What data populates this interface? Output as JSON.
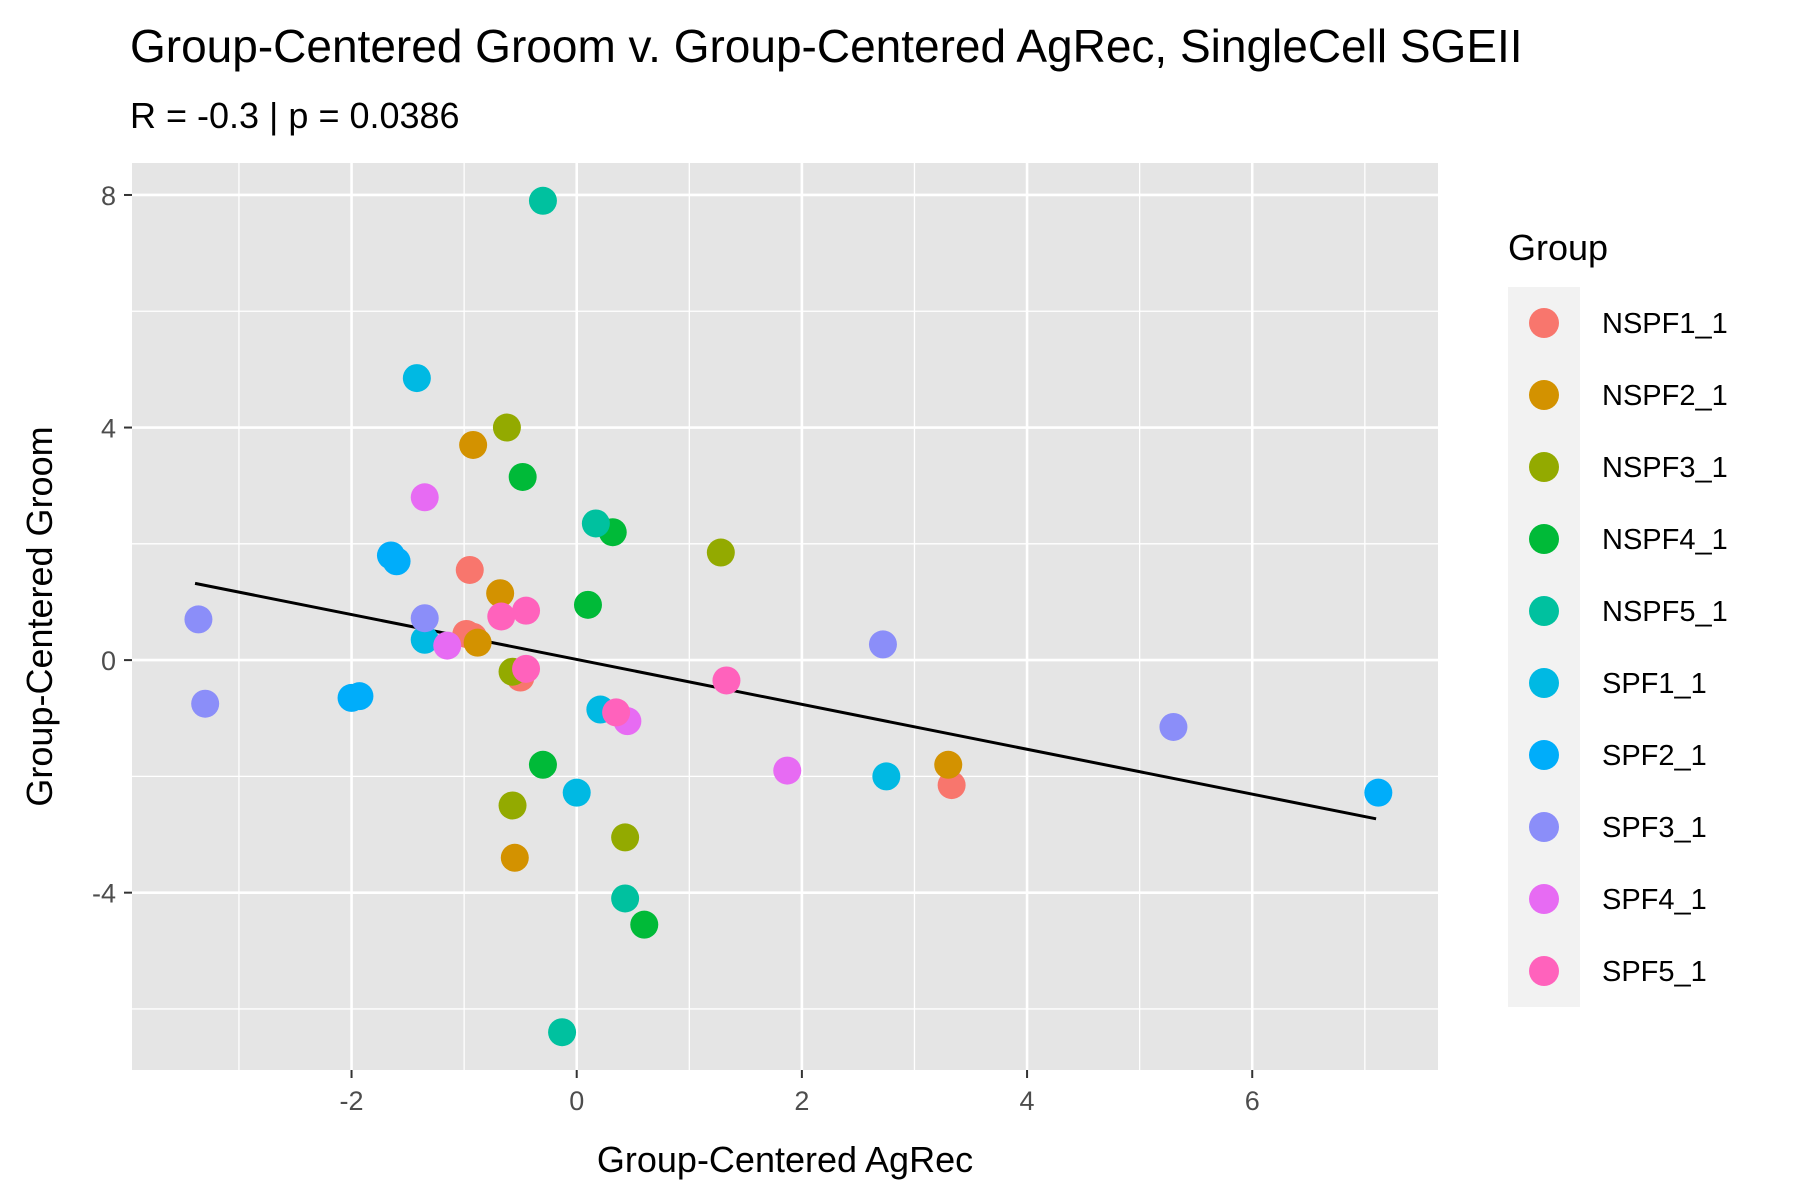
{
  "chart_data": {
    "type": "scatter",
    "title": "Group-Centered Groom v. Group-Centered AgRec, SingleCell SGEII",
    "subtitle": "R = -0.3 | p = 0.0386",
    "xlabel": "Group-Centered AgRec",
    "ylabel": "Group-Centered Groom",
    "xlim": [
      -3.95,
      7.65
    ],
    "ylim": [
      -7.05,
      8.55
    ],
    "x_ticks": [
      -2,
      0,
      2,
      4,
      6
    ],
    "x_tick_labels": [
      "-2",
      "0",
      "2",
      "4",
      "6"
    ],
    "y_ticks": [
      -4,
      0,
      4,
      8
    ],
    "y_tick_labels": [
      "-4",
      "0",
      "4",
      "8"
    ],
    "grid": true,
    "panel_background": "#e5e5e5",
    "legend": {
      "title": "Group",
      "position": "right"
    },
    "trend_line": {
      "x": [
        -3.39,
        7.1
      ],
      "y": [
        1.32,
        -2.73
      ],
      "color": "#000000"
    },
    "series": [
      {
        "name": "NSPF1_1",
        "color": "#F8766D",
        "points": [
          [
            -0.95,
            1.55
          ],
          [
            -0.98,
            0.45
          ],
          [
            -0.5,
            -0.3
          ],
          [
            3.33,
            -2.15
          ],
          [
            -0.92,
            0.4
          ]
        ]
      },
      {
        "name": "NSPF2_1",
        "color": "#D39200",
        "points": [
          [
            -0.92,
            3.7
          ],
          [
            -0.68,
            1.15
          ],
          [
            -0.88,
            0.3
          ],
          [
            -0.55,
            -3.4
          ],
          [
            3.3,
            -1.8
          ]
        ]
      },
      {
        "name": "NSPF3_1",
        "color": "#93AA00",
        "points": [
          [
            -0.62,
            4.0
          ],
          [
            1.28,
            1.85
          ],
          [
            -0.57,
            -0.2
          ],
          [
            -0.57,
            -2.5
          ],
          [
            0.43,
            -3.05
          ]
        ]
      },
      {
        "name": "NSPF4_1",
        "color": "#00BA38",
        "points": [
          [
            -0.48,
            3.15
          ],
          [
            0.32,
            2.2
          ],
          [
            0.1,
            0.95
          ],
          [
            -0.3,
            -1.8
          ],
          [
            0.6,
            -4.55
          ]
        ]
      },
      {
        "name": "NSPF5_1",
        "color": "#00C19F",
        "points": [
          [
            -0.3,
            7.9
          ],
          [
            0.17,
            2.35
          ],
          [
            0.43,
            -4.1
          ],
          [
            -0.13,
            -6.4
          ]
        ]
      },
      {
        "name": "SPF1_1",
        "color": "#00B9E3",
        "points": [
          [
            -1.42,
            4.85
          ],
          [
            -1.35,
            0.35
          ],
          [
            0.21,
            -0.85
          ],
          [
            0.0,
            -2.28
          ],
          [
            2.75,
            -2.0
          ]
        ]
      },
      {
        "name": "SPF2_1",
        "color": "#00ADFA",
        "points": [
          [
            -1.65,
            1.8
          ],
          [
            -1.6,
            1.7
          ],
          [
            -2.0,
            -0.65
          ],
          [
            -1.93,
            -0.62
          ],
          [
            7.12,
            -2.28
          ]
        ]
      },
      {
        "name": "SPF3_1",
        "color": "#7CAE00",
        "fill_override": "#8B8EF9",
        "points": [
          [
            -3.36,
            0.7
          ],
          [
            -1.35,
            0.72
          ],
          [
            -3.3,
            -0.75
          ],
          [
            2.72,
            0.27
          ],
          [
            5.3,
            -1.15
          ]
        ]
      },
      {
        "name": "SPF4_1",
        "color": "#E76BF3",
        "points": [
          [
            -1.35,
            2.8
          ],
          [
            -1.15,
            0.25
          ],
          [
            0.45,
            -1.05
          ],
          [
            1.87,
            -1.9
          ]
        ]
      },
      {
        "name": "SPF5_1",
        "color": "#FF62BC",
        "points": [
          [
            -0.67,
            0.75
          ],
          [
            -0.45,
            0.85
          ],
          [
            -0.45,
            -0.15
          ],
          [
            0.35,
            -0.9
          ],
          [
            1.33,
            -0.35
          ]
        ]
      }
    ]
  }
}
